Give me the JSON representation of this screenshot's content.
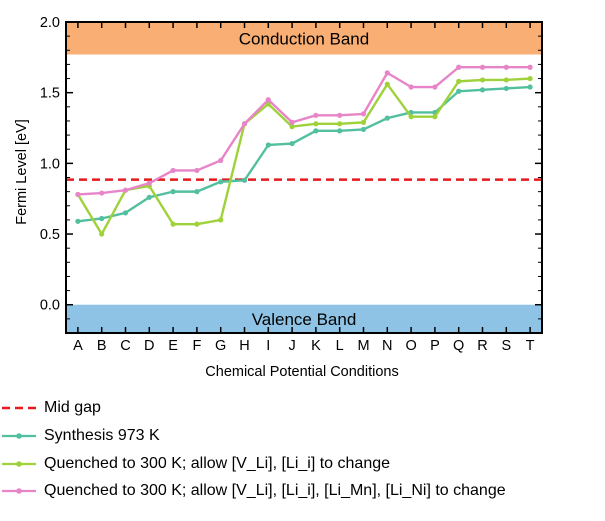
{
  "chart_data": {
    "type": "line",
    "xlabel": "Chemical Potential Conditions",
    "ylabel": "Fermi Level [eV]",
    "categories": [
      "A",
      "B",
      "C",
      "D",
      "E",
      "F",
      "G",
      "H",
      "I",
      "J",
      "K",
      "L",
      "M",
      "N",
      "O",
      "P",
      "Q",
      "R",
      "S",
      "T"
    ],
    "ylim": [
      -0.2,
      2.0
    ],
    "yticks": [
      "0.0",
      "0.5",
      "1.0",
      "1.5",
      "2.0"
    ],
    "bands": [
      {
        "label": "Conduction Band",
        "from": 1.77,
        "to": 2.0,
        "color": "#f9ae74"
      },
      {
        "label": "Valence Band",
        "from": -0.2,
        "to": 0.0,
        "color": "#8ec3e6"
      }
    ],
    "midgap": {
      "name": "Mid gap",
      "value": 0.885,
      "color": "#e41a1c"
    },
    "series": [
      {
        "name": "Synthesis 973 K",
        "color": "#52bf9f",
        "values": [
          0.59,
          0.61,
          0.65,
          0.76,
          0.8,
          0.8,
          0.87,
          0.88,
          1.13,
          1.14,
          1.23,
          1.23,
          1.24,
          1.32,
          1.36,
          1.36,
          1.51,
          1.52,
          1.53,
          1.54
        ]
      },
      {
        "name": "Quenched to 300 K; allow [V_Li], [Li_i] to change",
        "color": "#9fd23a",
        "values": [
          0.78,
          0.5,
          0.81,
          0.84,
          0.57,
          0.57,
          0.6,
          1.28,
          1.42,
          1.26,
          1.28,
          1.28,
          1.29,
          1.56,
          1.33,
          1.33,
          1.58,
          1.59,
          1.59,
          1.6
        ]
      },
      {
        "name": "Quenched to 300 K; allow [V_Li], [Li_i], [Li_Mn], [Li_Ni] to change",
        "color": "#e885c8",
        "values": [
          0.78,
          0.79,
          0.81,
          0.86,
          0.95,
          0.95,
          1.02,
          1.28,
          1.45,
          1.29,
          1.34,
          1.34,
          1.35,
          1.64,
          1.54,
          1.54,
          1.68,
          1.68,
          1.68,
          1.68
        ]
      }
    ]
  },
  "legend": {
    "items": [
      {
        "key": "midgap",
        "style": "dashed",
        "color": "#e41a1c",
        "label": "Mid gap"
      },
      {
        "key": "s0",
        "style": "line-dot",
        "color": "#52bf9f",
        "label": "Synthesis 973 K"
      },
      {
        "key": "s1",
        "style": "line-dot",
        "color": "#9fd23a",
        "label": "Quenched to 300 K; allow [V_Li], [Li_i] to change"
      },
      {
        "key": "s2",
        "style": "line-dot",
        "color": "#e885c8",
        "label": "Quenched to 300 K; allow [V_Li], [Li_i], [Li_Mn], [Li_Ni] to change"
      }
    ]
  }
}
